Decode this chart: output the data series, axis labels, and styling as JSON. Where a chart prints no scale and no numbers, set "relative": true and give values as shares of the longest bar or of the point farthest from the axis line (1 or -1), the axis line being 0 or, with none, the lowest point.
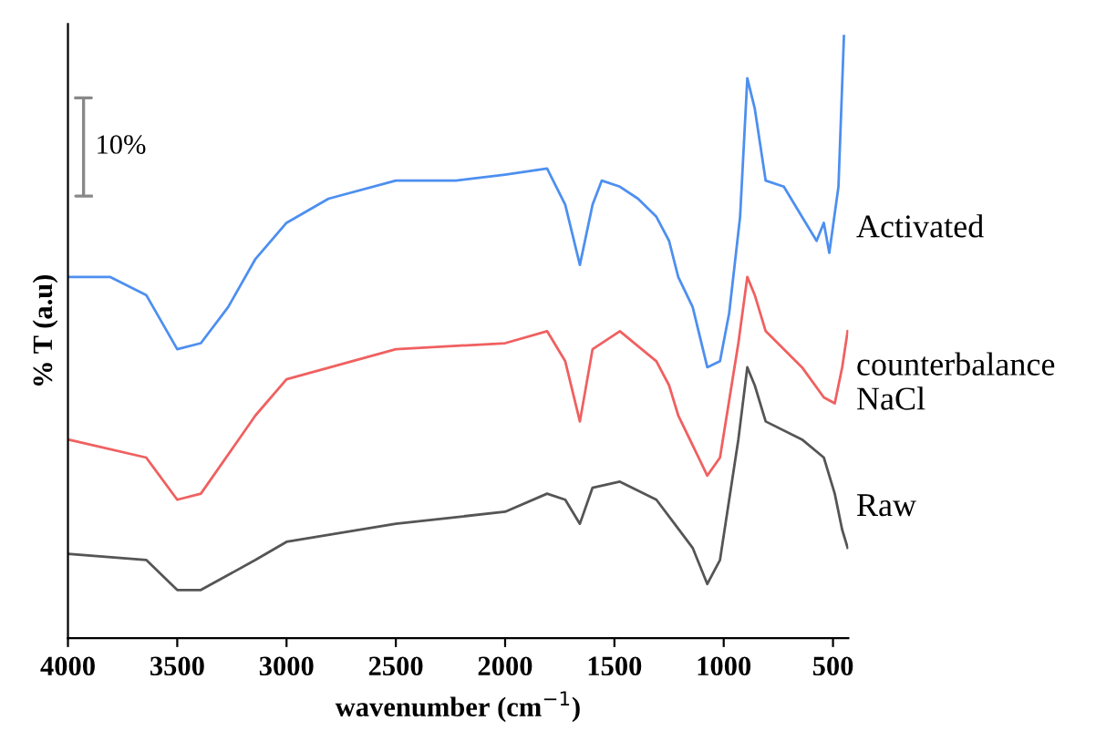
{
  "chart_data": {
    "type": "line",
    "relative": true,
    "xlabel": "wavenumber (cm$^{−1}$)",
    "ylabel": "% T (a.u)",
    "xlim": [
      4000,
      430
    ],
    "xticks": [
      4000,
      3500,
      3000,
      2500,
      2000,
      1500,
      1000,
      500
    ],
    "grid": false,
    "legend": false,
    "annotations": [
      "10%"
    ],
    "series": [
      {
        "name": "Activated",
        "color": "#4d8ff0",
        "x": [
          4000,
          3808,
          3642,
          3500,
          3392,
          3267,
          3142,
          3000,
          2808,
          2500,
          2225,
          2000,
          1808,
          1725,
          1658,
          1600,
          1558,
          1475,
          1392,
          1308,
          1250,
          1208,
          1142,
          1075,
          1017,
          975,
          925,
          892,
          858,
          808,
          725,
          642,
          575,
          542,
          517,
          475,
          450
        ],
        "values": [
          0.6,
          0.6,
          0.57,
          0.48,
          0.49,
          0.55,
          0.63,
          0.69,
          0.73,
          0.76,
          0.76,
          0.77,
          0.78,
          0.72,
          0.62,
          0.72,
          0.76,
          0.75,
          0.73,
          0.7,
          0.66,
          0.6,
          0.55,
          0.45,
          0.46,
          0.54,
          0.7,
          0.93,
          0.88,
          0.76,
          0.75,
          0.7,
          0.66,
          0.69,
          0.64,
          0.75,
          1.0
        ]
      },
      {
        "name": "counterbalance\nNaCl",
        "color": "#f06060",
        "x": [
          4000,
          3642,
          3500,
          3392,
          3142,
          3000,
          2500,
          2000,
          1808,
          1725,
          1658,
          1600,
          1475,
          1308,
          1250,
          1208,
          1075,
          1017,
          933,
          892,
          858,
          808,
          642,
          542,
          492,
          458,
          433
        ],
        "values": [
          0.33,
          0.3,
          0.23,
          0.24,
          0.37,
          0.43,
          0.48,
          0.49,
          0.51,
          0.46,
          0.36,
          0.48,
          0.51,
          0.46,
          0.42,
          0.37,
          0.27,
          0.3,
          0.49,
          0.6,
          0.57,
          0.51,
          0.45,
          0.4,
          0.39,
          0.45,
          0.51
        ]
      },
      {
        "name": "Raw",
        "color": "#555555",
        "x": [
          4000,
          3642,
          3500,
          3392,
          3142,
          3000,
          2500,
          2000,
          1808,
          1725,
          1658,
          1600,
          1475,
          1308,
          1225,
          1142,
          1075,
          1017,
          933,
          892,
          858,
          808,
          642,
          542,
          492,
          458,
          433
        ],
        "values": [
          0.14,
          0.13,
          0.08,
          0.08,
          0.13,
          0.16,
          0.19,
          0.21,
          0.24,
          0.23,
          0.19,
          0.25,
          0.26,
          0.23,
          0.19,
          0.15,
          0.09,
          0.13,
          0.33,
          0.45,
          0.42,
          0.36,
          0.33,
          0.3,
          0.24,
          0.18,
          0.15
        ]
      }
    ]
  }
}
